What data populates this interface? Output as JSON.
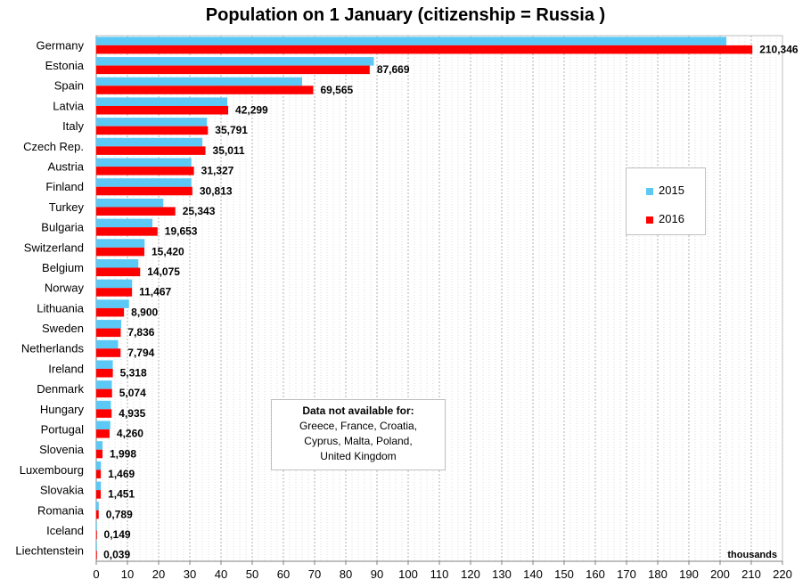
{
  "chart_data": {
    "type": "bar",
    "orientation": "horizontal",
    "title": "Population on 1 January (citizenship = Russia )",
    "unit_label": "thousands",
    "categories": [
      "Germany",
      "Estonia",
      "Spain",
      "Latvia",
      "Italy",
      "Czech Rep.",
      "Austria",
      "Finland",
      "Turkey",
      "Bulgaria",
      "Switzerland",
      "Belgium",
      "Norway",
      "Lithuania",
      "Sweden",
      "Netherlands",
      "Ireland",
      "Denmark",
      "Hungary",
      "Portugal",
      "Slovenia",
      "Luxembourg",
      "Slovakia",
      "Romania",
      "Iceland",
      "Liechtenstein"
    ],
    "series": [
      {
        "name": "2015",
        "color": "#5bc8f5",
        "values": [
          202,
          89,
          66,
          42,
          35.5,
          34,
          30.5,
          30.5,
          21.5,
          18,
          15.5,
          13.5,
          11.5,
          10.5,
          8,
          7,
          5.3,
          5,
          4.7,
          4.5,
          2,
          1.5,
          1.5,
          0.8,
          0.15,
          0.04
        ]
      },
      {
        "name": "2016",
        "color": "#ff0000",
        "values": [
          210.346,
          87.669,
          69.565,
          42.299,
          35.791,
          35.011,
          31.327,
          30.813,
          25.343,
          19.653,
          15.42,
          14.075,
          11.467,
          8.9,
          7.836,
          7.794,
          5.318,
          5.074,
          4.935,
          4.26,
          1.998,
          1.469,
          1.451,
          0.789,
          0.149,
          0.039
        ]
      }
    ],
    "data_labels_2016": [
      "210,346",
      "87,669",
      "69,565",
      "42,299",
      "35,791",
      "35,011",
      "31,327",
      "30,813",
      "25,343",
      "19,653",
      "15,420",
      "14,075",
      "11,467",
      "8,900",
      "7,836",
      "7,794",
      "5,318",
      "5,074",
      "4,935",
      "4,260",
      "1,998",
      "1,469",
      "1,451",
      "0,789",
      "0,149",
      "0,039"
    ],
    "xlim": [
      0,
      220
    ],
    "x_ticks": [
      "0",
      "10",
      "20",
      "30",
      "40",
      "50",
      "60",
      "70",
      "80",
      "90",
      "100",
      "110",
      "120",
      "130",
      "140",
      "150",
      "160",
      "170",
      "180",
      "190",
      "200",
      "210",
      "220"
    ],
    "grid": true,
    "legend_position": "right"
  },
  "note": {
    "title": "Data not available for:",
    "lines": [
      "Greece, France, Croatia,",
      "Cyprus, Malta, Poland,",
      "United Kingdom"
    ]
  }
}
